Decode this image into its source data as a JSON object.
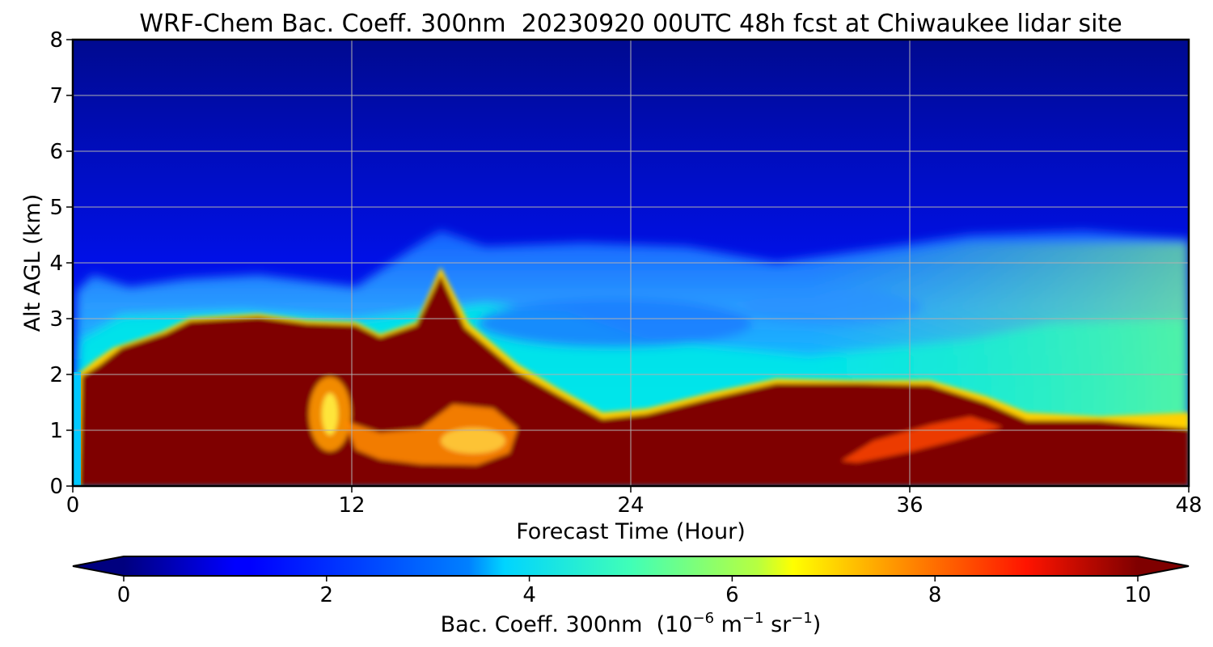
{
  "chart_data": {
    "type": "heatmap",
    "title": "WRF-Chem Bac. Coeff. 300nm  20230920 00UTC 48h fcst at Chiwaukee lidar site",
    "xlabel": "Forecast Time (Hour)",
    "ylabel": "Alt AGL (km)",
    "xlim": [
      0,
      48
    ],
    "ylim": [
      0,
      8
    ],
    "xticks": [
      0,
      12,
      24,
      36,
      48
    ],
    "yticks": [
      0,
      1,
      2,
      3,
      4,
      5,
      6,
      7,
      8
    ],
    "grid": true,
    "colorbar": {
      "orientation": "horizontal",
      "placement": "bottom",
      "label_main": "Bac. Coeff. 300nm  (10",
      "label_exp1": "−6",
      "label_mid": " m",
      "label_exp2": "−1",
      "label_mid2": " sr",
      "label_exp3": "−1",
      "label_end": ")",
      "vmin": 0,
      "vmax": 10,
      "ticks": [
        0,
        2,
        4,
        6,
        8,
        10
      ],
      "extend": "both",
      "colormap": "jet"
    },
    "field_description_values": {
      "surface_layer_top_km": [
        [
          0,
          0.0
        ],
        [
          0.3,
          1.9
        ],
        [
          2,
          2.4
        ],
        [
          5,
          2.9
        ],
        [
          8,
          3.0
        ],
        [
          10,
          2.9
        ],
        [
          12,
          2.9
        ],
        [
          13,
          2.7
        ],
        [
          15,
          2.9
        ],
        [
          16,
          3.8
        ],
        [
          17,
          2.8
        ],
        [
          19,
          2.2
        ],
        [
          21,
          1.8
        ],
        [
          23,
          1.3
        ],
        [
          25,
          1.4
        ],
        [
          28,
          1.7
        ],
        [
          31,
          1.9
        ],
        [
          35,
          1.8
        ],
        [
          38,
          1.5
        ],
        [
          41,
          1.1
        ],
        [
          44,
          1.2
        ],
        [
          48,
          1.2
        ]
      ],
      "aerosol_top_km": [
        [
          0.5,
          3.6
        ],
        [
          2,
          3.5
        ],
        [
          6,
          3.7
        ],
        [
          12,
          3.3
        ],
        [
          16,
          4.5
        ],
        [
          20,
          4.2
        ],
        [
          26,
          4.2
        ],
        [
          32,
          4.0
        ],
        [
          36,
          4.3
        ],
        [
          40,
          4.5
        ],
        [
          44,
          4.6
        ],
        [
          48,
          4.5
        ]
      ]
    }
  }
}
